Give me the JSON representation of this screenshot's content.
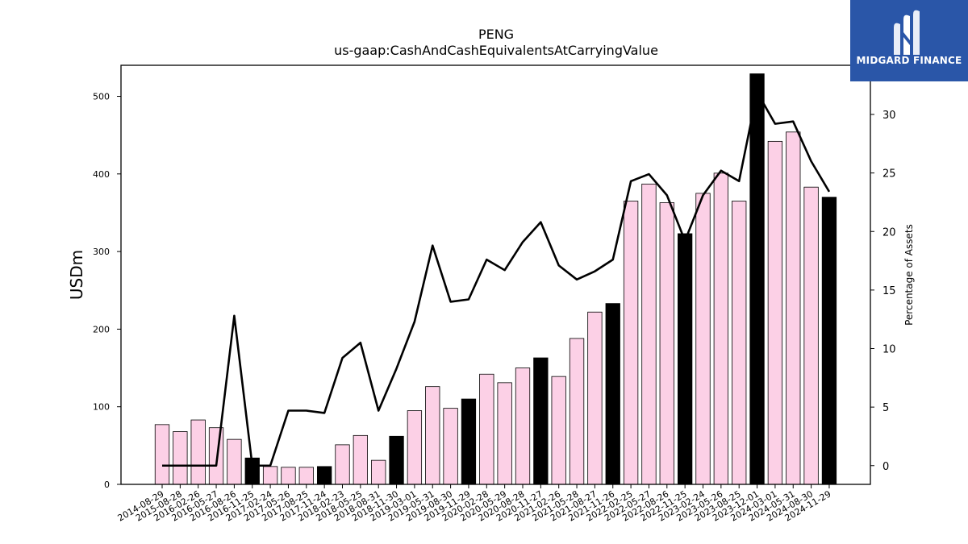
{
  "chart_data": {
    "type": "bar",
    "title": "PENG",
    "subtitle": "us-gaap:CashAndCashEquivalentsAtCarryingValue",
    "ylabel": "USDm",
    "y2label": "Percentage of Assets",
    "ylim": [
      0,
      540
    ],
    "y2lim": [
      -1.6,
      34.2
    ],
    "yticks": [
      0,
      100,
      200,
      300,
      400,
      500
    ],
    "y2ticks": [
      0,
      5,
      10,
      15,
      20,
      25,
      30
    ],
    "categories": [
      "2014-08-29",
      "2015-08-28",
      "2016-02-26",
      "2016-05-27",
      "2016-08-26",
      "2016-11-25",
      "2017-02-24",
      "2017-05-26",
      "2017-08-25",
      "2017-11-24",
      "2018-02-23",
      "2018-05-25",
      "2018-08-31",
      "2018-11-30",
      "2019-03-01",
      "2019-05-31",
      "2019-08-30",
      "2019-11-29",
      "2020-02-28",
      "2020-05-29",
      "2020-08-28",
      "2020-11-27",
      "2021-02-26",
      "2021-05-28",
      "2021-08-27",
      "2021-11-26",
      "2022-02-25",
      "2022-05-27",
      "2022-08-26",
      "2022-11-25",
      "2023-02-24",
      "2023-05-26",
      "2023-08-25",
      "2023-12-01",
      "2024-03-01",
      "2024-05-31",
      "2024-08-30",
      "2024-11-29"
    ],
    "series": [
      {
        "values": [
          77,
          68,
          83,
          73,
          58,
          34,
          23,
          22,
          22,
          23,
          51,
          63,
          31,
          62,
          95,
          126,
          98,
          110,
          142,
          131,
          150,
          163,
          139,
          188,
          222,
          233,
          365,
          387,
          363,
          323,
          375,
          401,
          365,
          529,
          442,
          454,
          383,
          370
        ],
        "highlight": [
          false,
          false,
          false,
          false,
          false,
          true,
          false,
          false,
          false,
          true,
          false,
          false,
          false,
          true,
          false,
          false,
          false,
          true,
          false,
          false,
          false,
          true,
          false,
          false,
          false,
          true,
          false,
          false,
          false,
          true,
          false,
          false,
          false,
          true,
          false,
          false,
          false,
          true
        ]
      },
      {
        "axis": "right",
        "values": [
          0,
          0,
          0,
          0,
          12.8,
          0,
          0,
          4.7,
          4.7,
          4.5,
          9.2,
          10.5,
          4.7,
          8.3,
          12.3,
          18.8,
          14.0,
          14.2,
          17.6,
          16.7,
          19.1,
          20.8,
          17.1,
          15.9,
          16.6,
          17.6,
          24.3,
          24.9,
          23.1,
          19.2,
          23.1,
          25.2,
          24.3,
          31.9,
          29.2,
          29.4,
          26.0,
          23.4
        ]
      }
    ],
    "colors": {
      "bar": "#fcd0e6",
      "bar_highlight": "#000000",
      "line": "#000000"
    }
  },
  "logo": {
    "text": "MIDGARD FINANCE",
    "bg": "#2a56a8"
  }
}
